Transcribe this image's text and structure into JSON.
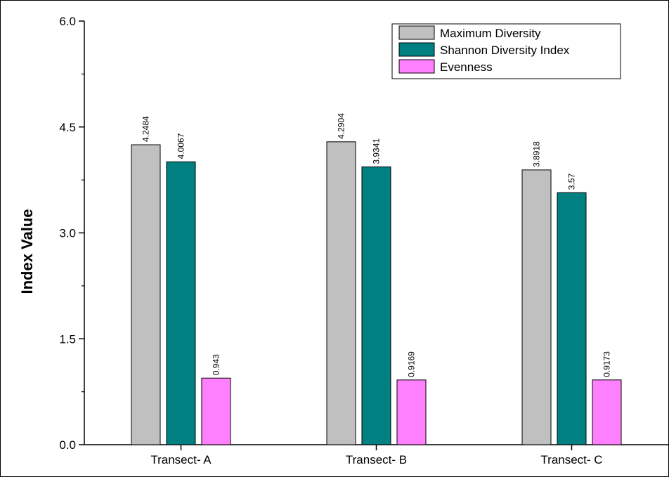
{
  "chart_data": {
    "type": "bar",
    "title": "",
    "xlabel": "",
    "ylabel": "Index Value",
    "ylim": [
      0,
      6.0
    ],
    "yticks": [
      "0.0",
      "1.5",
      "3.0",
      "4.5",
      "6.0"
    ],
    "grid": false,
    "legend_position": "top-right",
    "categories": [
      "Transect- A",
      "Transect- B",
      "Transect- C"
    ],
    "series": [
      {
        "name": "Maximum Diversity",
        "color": "#c0c0c0",
        "values": [
          4.2484,
          4.2904,
          3.8918
        ],
        "labels": [
          "4.2484",
          "4.2904",
          "3.8918"
        ]
      },
      {
        "name": "Shannon Diversity Index",
        "color": "#008080",
        "values": [
          4.0067,
          3.9341,
          3.57
        ],
        "labels": [
          "4.0067",
          "3.9341",
          "3.57"
        ]
      },
      {
        "name": "Evenness",
        "color": "#ff80ff",
        "values": [
          0.943,
          0.9169,
          0.9173
        ],
        "labels": [
          "0.943",
          "0.9169",
          "0.9173"
        ]
      }
    ]
  }
}
